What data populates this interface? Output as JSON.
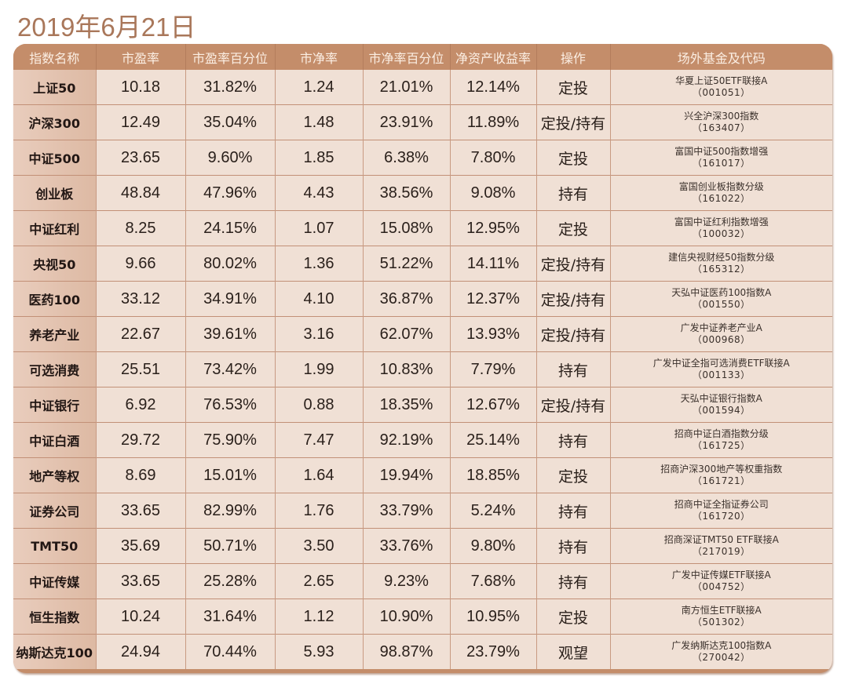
{
  "page": {
    "title": "2019年6月21日"
  },
  "table": {
    "headers": [
      "指数名称",
      "市盈率",
      "市盈率百分位",
      "市净率",
      "市净率百分位",
      "净资产收益率",
      "操作",
      "场外基金及代码"
    ],
    "rows": [
      {
        "name": "上证50",
        "pe": "10.18",
        "pe_pct": "31.82%",
        "pb": "1.24",
        "pb_pct": "21.01%",
        "roe": "12.14%",
        "action": "定投",
        "fund_name": "华夏上证50ETF联接A",
        "fund_code": "（001051）"
      },
      {
        "name": "沪深300",
        "pe": "12.49",
        "pe_pct": "35.04%",
        "pb": "1.48",
        "pb_pct": "23.91%",
        "roe": "11.89%",
        "action": "定投/持有",
        "fund_name": "兴全沪深300指数",
        "fund_code": "（163407）"
      },
      {
        "name": "中证500",
        "pe": "23.65",
        "pe_pct": "9.60%",
        "pb": "1.85",
        "pb_pct": "6.38%",
        "roe": "7.80%",
        "action": "定投",
        "fund_name": "富国中证500指数增强",
        "fund_code": "（161017）"
      },
      {
        "name": "创业板",
        "pe": "48.84",
        "pe_pct": "47.96%",
        "pb": "4.43",
        "pb_pct": "38.56%",
        "roe": "9.08%",
        "action": "持有",
        "fund_name": "富国创业板指数分级",
        "fund_code": "（161022）"
      },
      {
        "name": "中证红利",
        "pe": "8.25",
        "pe_pct": "24.15%",
        "pb": "1.07",
        "pb_pct": "15.08%",
        "roe": "12.95%",
        "action": "定投",
        "fund_name": "富国中证红利指数增强",
        "fund_code": "（100032）"
      },
      {
        "name": "央视50",
        "pe": "9.66",
        "pe_pct": "80.02%",
        "pb": "1.36",
        "pb_pct": "51.22%",
        "roe": "14.11%",
        "action": "定投/持有",
        "fund_name": "建信央视财经50指数分级",
        "fund_code": "（165312）"
      },
      {
        "name": "医药100",
        "pe": "33.12",
        "pe_pct": "34.91%",
        "pb": "4.10",
        "pb_pct": "36.87%",
        "roe": "12.37%",
        "action": "定投/持有",
        "fund_name": "天弘中证医药100指数A",
        "fund_code": "（001550）"
      },
      {
        "name": "养老产业",
        "pe": "22.67",
        "pe_pct": "39.61%",
        "pb": "3.16",
        "pb_pct": "62.07%",
        "roe": "13.93%",
        "action": "定投/持有",
        "fund_name": "广发中证养老产业A",
        "fund_code": "（000968）"
      },
      {
        "name": "可选消费",
        "pe": "25.51",
        "pe_pct": "73.42%",
        "pb": "1.99",
        "pb_pct": "10.83%",
        "roe": "7.79%",
        "action": "持有",
        "fund_name": "广发中证全指可选消费ETF联接A",
        "fund_code": "（001133）"
      },
      {
        "name": "中证银行",
        "pe": "6.92",
        "pe_pct": "76.53%",
        "pb": "0.88",
        "pb_pct": "18.35%",
        "roe": "12.67%",
        "action": "定投/持有",
        "fund_name": "天弘中证银行指数A",
        "fund_code": "（001594）"
      },
      {
        "name": "中证白酒",
        "pe": "29.72",
        "pe_pct": "75.90%",
        "pb": "7.47",
        "pb_pct": "92.19%",
        "roe": "25.14%",
        "action": "持有",
        "fund_name": "招商中证白酒指数分级",
        "fund_code": "（161725）"
      },
      {
        "name": "地产等权",
        "pe": "8.69",
        "pe_pct": "15.01%",
        "pb": "1.64",
        "pb_pct": "19.94%",
        "roe": "18.85%",
        "action": "定投",
        "fund_name": "招商沪深300地产等权重指数",
        "fund_code": "（161721）"
      },
      {
        "name": "证券公司",
        "pe": "33.65",
        "pe_pct": "82.99%",
        "pb": "1.76",
        "pb_pct": "33.79%",
        "roe": "5.24%",
        "action": "持有",
        "fund_name": "招商中证全指证券公司",
        "fund_code": "（161720）"
      },
      {
        "name": "TMT50",
        "pe": "35.69",
        "pe_pct": "50.71%",
        "pb": "3.50",
        "pb_pct": "33.76%",
        "roe": "9.80%",
        "action": "持有",
        "fund_name": "招商深证TMT50 ETF联接A",
        "fund_code": "（217019）"
      },
      {
        "name": "中证传媒",
        "pe": "33.65",
        "pe_pct": "25.28%",
        "pb": "2.65",
        "pb_pct": "9.23%",
        "roe": "7.68%",
        "action": "持有",
        "fund_name": "广发中证传媒ETF联接A",
        "fund_code": "（004752）"
      },
      {
        "name": "恒生指数",
        "pe": "10.24",
        "pe_pct": "31.64%",
        "pb": "1.12",
        "pb_pct": "10.90%",
        "roe": "10.95%",
        "action": "定投",
        "fund_name": "南方恒生ETF联接A",
        "fund_code": "（501302）"
      },
      {
        "name": "纳斯达克100",
        "pe": "24.94",
        "pe_pct": "70.44%",
        "pb": "5.93",
        "pb_pct": "98.87%",
        "roe": "23.79%",
        "action": "观望",
        "fund_name": "广发纳斯达克100指数A",
        "fund_code": "（270042）"
      }
    ]
  },
  "colors": {
    "title": "#a9775a",
    "header_bg": "#c48d6a",
    "header_text": "#fbeee3",
    "name_col_bg": "#ddb9a3",
    "cell_bg": "#f0e0d5",
    "text": "#2a201b"
  }
}
